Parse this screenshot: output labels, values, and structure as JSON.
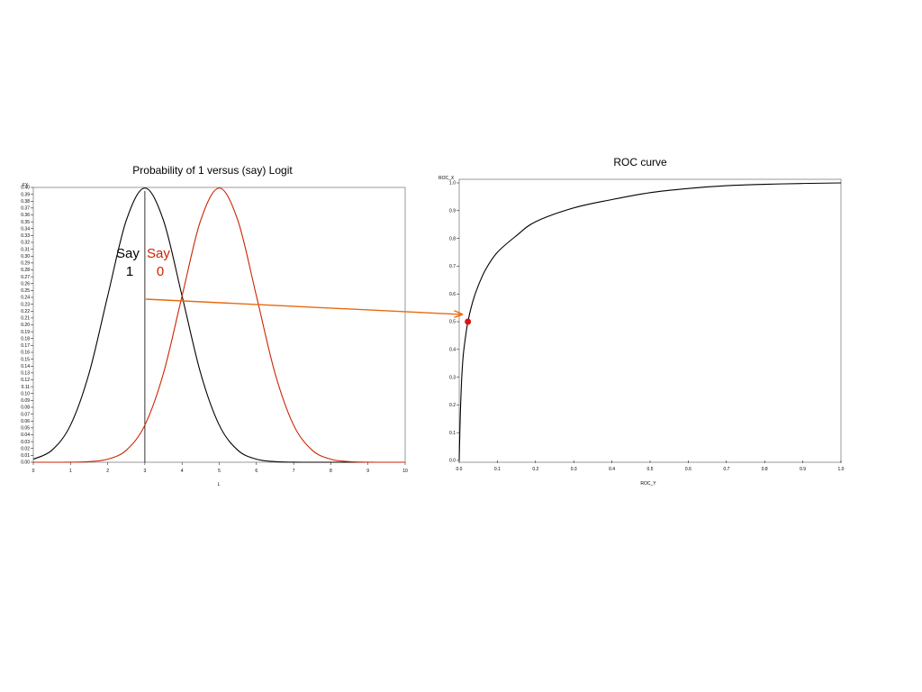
{
  "colors": {
    "black_series": "#000000",
    "red_series": "#cc2200",
    "arrow": "#e86a10",
    "point": "#dd1111"
  },
  "chart_data": [
    {
      "type": "line",
      "title": "Probability of 1 versus (say) Logit",
      "xlabel": "L",
      "ylabel": "FX",
      "xlim": [
        0,
        10
      ],
      "ylim": [
        0,
        0.4
      ],
      "x_ticks": [
        "0",
        "1",
        "2",
        "3",
        "4",
        "5",
        "6",
        "7",
        "8",
        "9",
        "10"
      ],
      "y_ticks": [
        "0.00",
        "0.01",
        "0.02",
        "0.03",
        "0.04",
        "0.05",
        "0.06",
        "0.07",
        "0.08",
        "0.09",
        "0.10",
        "0.11",
        "0.12",
        "0.13",
        "0.14",
        "0.15",
        "0.16",
        "0.17",
        "0.18",
        "0.19",
        "0.20",
        "0.21",
        "0.22",
        "0.23",
        "0.24",
        "0.25",
        "0.26",
        "0.27",
        "0.28",
        "0.29",
        "0.30",
        "0.31",
        "0.32",
        "0.33",
        "0.34",
        "0.35",
        "0.36",
        "0.37",
        "0.38",
        "0.39",
        "0.40"
      ],
      "series": [
        {
          "color": "#000000",
          "x": [
            0,
            0.5,
            1,
            1.5,
            2,
            2.5,
            3,
            3.5,
            4,
            4.5,
            5,
            5.5,
            6,
            6.5,
            7,
            7.5,
            8,
            8.5,
            9,
            9.5,
            10
          ],
          "values": [
            0.0044,
            0.0175,
            0.054,
            0.1295,
            0.242,
            0.352,
            0.399,
            0.352,
            0.242,
            0.1295,
            0.054,
            0.0175,
            0.0044,
            0.0009,
            0.0001,
            0,
            0,
            0,
            0,
            0,
            0
          ]
        },
        {
          "color": "#cc2200",
          "x": [
            0,
            0.5,
            1,
            1.5,
            2,
            2.5,
            3,
            3.5,
            4,
            4.5,
            5,
            5.5,
            6,
            6.5,
            7,
            7.5,
            8,
            8.5,
            9,
            9.5,
            10
          ],
          "values": [
            0,
            0,
            0.0001,
            0.0009,
            0.0044,
            0.0175,
            0.054,
            0.1295,
            0.242,
            0.352,
            0.399,
            0.352,
            0.242,
            0.1295,
            0.054,
            0.0175,
            0.0044,
            0.0009,
            0.0001,
            0,
            0
          ]
        }
      ],
      "threshold_x": 3,
      "annotations": [
        {
          "lines": [
            "Say",
            "1"
          ],
          "color": "#000000"
        },
        {
          "lines": [
            "Say",
            "0"
          ],
          "color": "#cc2200"
        }
      ],
      "grid": false
    },
    {
      "type": "line",
      "title": "ROC curve",
      "xlabel": "ROC_Y",
      "ylabel": "ROC_X",
      "xlim": [
        0,
        1
      ],
      "ylim": [
        0,
        1
      ],
      "x_ticks": [
        "0.0",
        "0.1",
        "0.2",
        "0.3",
        "0.4",
        "0.5",
        "0.6",
        "0.7",
        "0.8",
        "0.9",
        "1.0"
      ],
      "y_ticks": [
        "0.0",
        "0.1",
        "0.2",
        "0.3",
        "0.4",
        "0.5",
        "0.6",
        "0.7",
        "0.8",
        "0.9",
        "1.0"
      ],
      "series": [
        {
          "color": "#000000",
          "x": [
            0,
            0.001,
            0.003,
            0.006,
            0.01,
            0.015,
            0.0228,
            0.035,
            0.05,
            0.07,
            0.1,
            0.15,
            0.2,
            0.3,
            0.4,
            0.5,
            0.6,
            0.7,
            0.8,
            0.9,
            1.0
          ],
          "values": [
            0,
            0.06,
            0.17,
            0.28,
            0.37,
            0.43,
            0.5,
            0.57,
            0.63,
            0.69,
            0.75,
            0.81,
            0.86,
            0.91,
            0.94,
            0.965,
            0.98,
            0.99,
            0.995,
            0.998,
            1.0
          ]
        }
      ],
      "highlight_point": {
        "x": 0.0228,
        "y": 0.5
      },
      "grid": false
    }
  ]
}
